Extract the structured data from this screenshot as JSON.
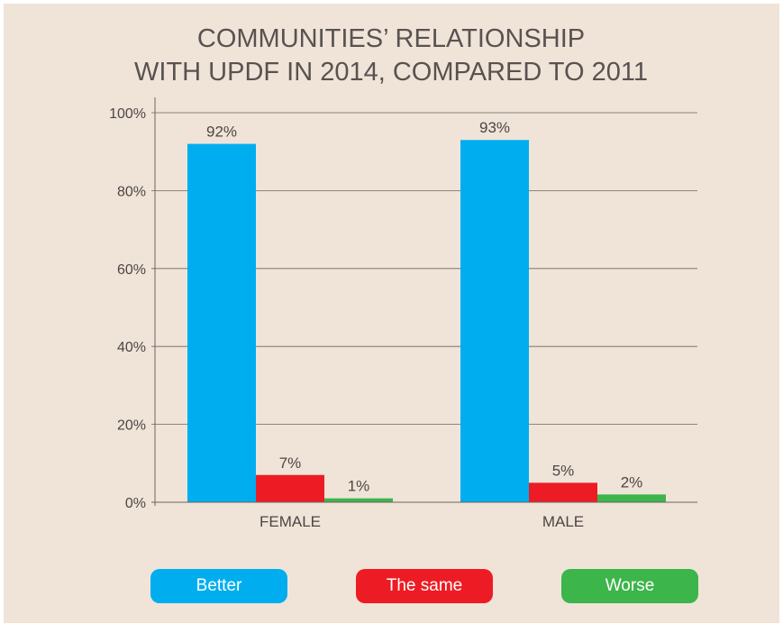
{
  "chart_data": {
    "type": "bar",
    "title": [
      "COMMUNITIES’ RELATIONSHIP",
      "WITH UPDF IN 2014, COMPARED TO 2011"
    ],
    "categories": [
      "FEMALE",
      "MALE"
    ],
    "series": [
      {
        "name": "Better",
        "color": "#00aeef",
        "values": [
          92,
          93
        ]
      },
      {
        "name": "The same",
        "color": "#ed1c24",
        "values": [
          7,
          5
        ]
      },
      {
        "name": "Worse",
        "color": "#3cb54a",
        "values": [
          1,
          2
        ]
      }
    ],
    "data_labels": [
      [
        "92%",
        "93%"
      ],
      [
        "7%",
        "5%"
      ],
      [
        "1%",
        "2%"
      ]
    ],
    "y_ticks": [
      0,
      20,
      40,
      60,
      80,
      100
    ],
    "y_tick_labels": [
      "0%",
      "20%",
      "40%",
      "60%",
      "80%",
      "100%"
    ],
    "ylim": [
      0,
      100
    ],
    "grid": true,
    "legend_placement": "bottom"
  }
}
